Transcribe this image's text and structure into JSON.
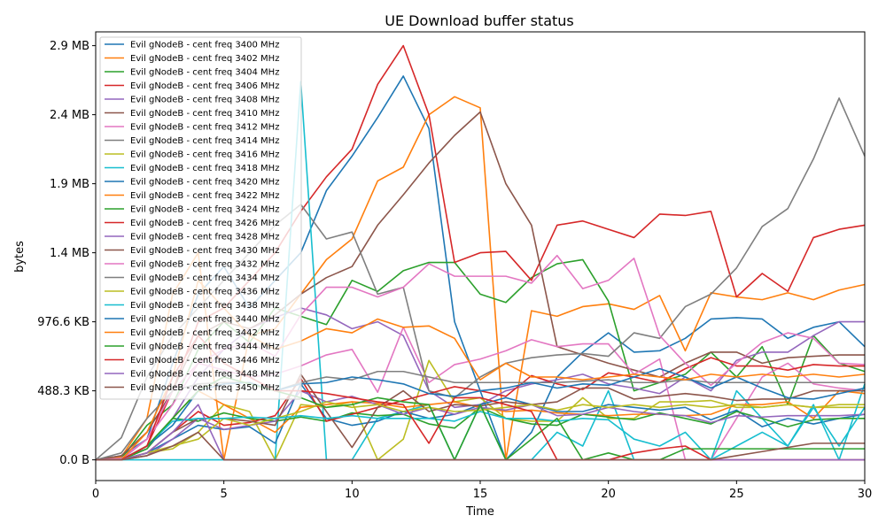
{
  "chart_data": {
    "type": "line",
    "title": "UE Download buffer status",
    "xlabel": "Time",
    "ylabel": "bytes",
    "xlim": [
      0,
      30
    ],
    "ylim": [
      -150000,
      3100000
    ],
    "x_ticks": [
      0,
      5,
      10,
      15,
      20,
      25,
      30
    ],
    "x_tick_labels": [
      "0",
      "5",
      "10",
      "15",
      "20",
      "25",
      "30"
    ],
    "y_ticks": [
      0,
      500000,
      1000000,
      1500000,
      2000000,
      2500000,
      3000000
    ],
    "y_tick_labels": [
      "0.0 B",
      "488.3 KB",
      "976.6 KB",
      "1.4 MB",
      "1.9 MB",
      "2.4 MB",
      "2.9 MB"
    ],
    "grid": false,
    "legend_position": "upper-left",
    "x": [
      0,
      1,
      2,
      3,
      4,
      5,
      6,
      7,
      8,
      9,
      10,
      11,
      12,
      13,
      14,
      15,
      16,
      17,
      18,
      19,
      20,
      21,
      22,
      23,
      24,
      25,
      26,
      27,
      28,
      29,
      30
    ],
    "series": [
      {
        "name": "Evil gNodeB - cent freq 3400 MHz",
        "color": "#1f77b4",
        "values": [
          0,
          30000,
          150000,
          700000,
          1200000,
          1400000,
          1100000,
          1300000,
          1500000,
          1950000,
          2200000,
          2480000,
          2780000,
          2400000,
          1000000,
          500000,
          0,
          200000,
          600000,
          780000,
          920000,
          780000,
          790000,
          880000,
          1020000,
          1030000,
          1020000,
          880000,
          960000,
          1000000,
          820000
        ]
      },
      {
        "name": "Evil gNodeB - cent freq 3402 MHz",
        "color": "#ff7f0e",
        "values": [
          0,
          20000,
          300000,
          1200000,
          1500000,
          0,
          900000,
          950000,
          1200000,
          1450000,
          1600000,
          2020000,
          2120000,
          2500000,
          2630000,
          2550000,
          0,
          1080000,
          1040000,
          1110000,
          1130000,
          1090000,
          1190000,
          790000,
          1210000,
          1180000,
          1160000,
          1210000,
          1160000,
          1230000,
          1270000
        ]
      },
      {
        "name": "Evil gNodeB - cent freq 3404 MHz",
        "color": "#2ca02c",
        "values": [
          0,
          10000,
          250000,
          400000,
          800000,
          1000000,
          850000,
          1100000,
          1040000,
          980000,
          1300000,
          1220000,
          1370000,
          1430000,
          1430000,
          1200000,
          1140000,
          1320000,
          1420000,
          1450000,
          1150000,
          500000,
          560000,
          620000,
          780000,
          600000,
          820000,
          400000,
          900000,
          700000,
          640000
        ]
      },
      {
        "name": "Evil gNodeB - cent freq 3406 MHz",
        "color": "#d62728",
        "values": [
          0,
          0,
          100000,
          500000,
          1000000,
          1100000,
          1300000,
          1500000,
          1800000,
          2050000,
          2250000,
          2720000,
          3000000,
          2500000,
          1430000,
          1500000,
          1510000,
          1300000,
          1700000,
          1730000,
          1670000,
          1610000,
          1780000,
          1770000,
          1800000,
          1180000,
          1350000,
          1220000,
          1610000,
          1670000,
          1700000
        ]
      },
      {
        "name": "Evil gNodeB - cent freq 3408 MHz",
        "color": "#9467bd",
        "values": [
          0,
          10000,
          80000,
          300000,
          600000,
          800000,
          950000,
          1030000,
          1100000,
          1050000,
          950000,
          1000000,
          900000,
          500000,
          380000,
          400000,
          500000,
          550000,
          580000,
          620000,
          550000,
          520000,
          480000,
          600000,
          500000,
          720000,
          780000,
          780000,
          900000,
          1000000,
          1000000
        ]
      },
      {
        "name": "Evil gNodeB - cent freq 3410 MHz",
        "color": "#8c564b",
        "values": [
          0,
          30000,
          200000,
          500000,
          900000,
          1000000,
          950000,
          1050000,
          1200000,
          1320000,
          1400000,
          1700000,
          1920000,
          2150000,
          2350000,
          2520000,
          2000000,
          1700000,
          820000,
          760000,
          700000,
          650000,
          600000,
          700000,
          780000,
          780000,
          700000,
          740000,
          750000,
          760000,
          760000
        ]
      },
      {
        "name": "Evil gNodeB - cent freq 3412 MHz",
        "color": "#e377c2",
        "values": [
          0,
          10000,
          150000,
          400000,
          700000,
          650000,
          600000,
          620000,
          680000,
          760000,
          800000,
          490000,
          960000,
          560000,
          690000,
          730000,
          790000,
          870000,
          820000,
          840000,
          840000,
          620000,
          730000,
          0,
          0,
          300000,
          600000,
          700000,
          550000,
          520000,
          500000
        ]
      },
      {
        "name": "Evil gNodeB - cent freq 3414 MHz",
        "color": "#7f7f7f",
        "values": [
          0,
          160000,
          600000,
          900000,
          1100000,
          1300000,
          1500000,
          1700000,
          1850000,
          1600000,
          1650000,
          1200000,
          1250000,
          500000,
          450000,
          600000,
          700000,
          740000,
          760000,
          770000,
          750000,
          920000,
          880000,
          1110000,
          1200000,
          1390000,
          1690000,
          1820000,
          2180000,
          2620000,
          2200000
        ]
      },
      {
        "name": "Evil gNodeB - cent freq 3416 MHz",
        "color": "#bcbd22",
        "values": [
          0,
          0,
          50000,
          80000,
          200000,
          400000,
          350000,
          0,
          400000,
          380000,
          420000,
          0,
          150000,
          720000,
          420000,
          450000,
          300000,
          280000,
          280000,
          450000,
          300000,
          300000,
          420000,
          420000,
          430000,
          380000,
          380000,
          400000,
          380000,
          380000,
          380000
        ]
      },
      {
        "name": "Evil gNodeB - cent freq 3418 MHz",
        "color": "#17becf",
        "values": [
          0,
          0,
          0,
          0,
          0,
          0,
          0,
          0,
          2740000,
          0,
          0,
          300000,
          350000,
          400000,
          0,
          400000,
          0,
          0,
          200000,
          100000,
          500000,
          0,
          0,
          0,
          0,
          500000,
          300000,
          100000,
          400000,
          0,
          550000
        ]
      },
      {
        "name": "Evil gNodeB - cent freq 3420 MHz",
        "color": "#1f77b4",
        "values": [
          0,
          0,
          50000,
          150000,
          250000,
          220000,
          240000,
          120000,
          550000,
          300000,
          250000,
          280000,
          350000,
          300000,
          330000,
          400000,
          450000,
          400000,
          350000,
          350000,
          400000,
          380000,
          360000,
          380000,
          290000,
          360000,
          240000,
          300000,
          260000,
          300000,
          330000
        ]
      },
      {
        "name": "Evil gNodeB - cent freq 3422 MHz",
        "color": "#ff7f0e",
        "values": [
          0,
          0,
          100000,
          300000,
          500000,
          400000,
          300000,
          200000,
          380000,
          400000,
          420000,
          410000,
          380000,
          400000,
          420000,
          380000,
          350000,
          360000,
          340000,
          330000,
          320000,
          330000,
          330000,
          320000,
          330000,
          400000,
          400000,
          420000,
          300000,
          500000,
          480000
        ]
      },
      {
        "name": "Evil gNodeB - cent freq 3424 MHz",
        "color": "#2ca02c",
        "values": [
          0,
          0,
          80000,
          300000,
          280000,
          340000,
          300000,
          280000,
          310000,
          280000,
          340000,
          320000,
          330000,
          260000,
          230000,
          380000,
          300000,
          260000,
          250000,
          330000,
          310000,
          290000,
          340000,
          300000,
          260000,
          350000,
          300000,
          240000,
          290000,
          300000,
          300000
        ]
      },
      {
        "name": "Evil gNodeB - cent freq 3426 MHz",
        "color": "#d62728",
        "values": [
          0,
          0,
          50000,
          200000,
          350000,
          250000,
          270000,
          320000,
          590000,
          280000,
          330000,
          380000,
          430000,
          480000,
          530000,
          500000,
          460000,
          610000,
          550000,
          510000,
          630000,
          600000,
          560000,
          660000,
          740000,
          680000,
          680000,
          650000,
          690000,
          680000,
          680000
        ]
      },
      {
        "name": "Evil gNodeB - cent freq 3428 MHz",
        "color": "#9467bd",
        "values": [
          0,
          0,
          30000,
          150000,
          300000,
          220000,
          250000,
          280000,
          500000,
          420000,
          460000,
          400000,
          330000,
          380000,
          330000,
          380000,
          360000,
          400000,
          320000,
          330000,
          380000,
          350000,
          330000,
          320000,
          270000,
          320000,
          310000,
          320000,
          320000,
          320000,
          330000
        ]
      },
      {
        "name": "Evil gNodeB - cent freq 3430 MHz",
        "color": "#8c564b",
        "values": [
          0,
          0,
          50000,
          200000,
          300000,
          300000,
          280000,
          250000,
          620000,
          350000,
          90000,
          380000,
          500000,
          350000,
          400000,
          390000,
          420000,
          400000,
          420000,
          520000,
          520000,
          440000,
          460000,
          480000,
          460000,
          430000,
          440000,
          440000,
          500000,
          500000,
          500000
        ]
      },
      {
        "name": "Evil gNodeB - cent freq 3432 MHz",
        "color": "#e377c2",
        "values": [
          0,
          0,
          150000,
          500000,
          700000,
          800000,
          850000,
          750000,
          1050000,
          1250000,
          1250000,
          1180000,
          1250000,
          1420000,
          1330000,
          1330000,
          1330000,
          1280000,
          1480000,
          1240000,
          1300000,
          1460000,
          900000,
          700000,
          540000,
          700000,
          850000,
          920000,
          880000,
          700000,
          690000
        ]
      },
      {
        "name": "Evil gNodeB - cent freq 3434 MHz",
        "color": "#7f7f7f",
        "values": [
          0,
          50000,
          300000,
          500000,
          550000,
          560000,
          560000,
          500000,
          560000,
          600000,
          580000,
          640000,
          640000,
          600000,
          560000,
          560000,
          560000,
          560000,
          560000,
          570000,
          580000,
          560000,
          560000,
          580000,
          560000,
          560000,
          560000,
          560000,
          560000,
          560000,
          560000
        ]
      },
      {
        "name": "Evil gNodeB - cent freq 3436 MHz",
        "color": "#bcbd22",
        "values": [
          0,
          0,
          50000,
          100000,
          150000,
          300000,
          250000,
          300000,
          350000,
          420000,
          380000,
          400000,
          350000,
          380000,
          350000,
          360000,
          380000,
          400000,
          360000,
          400000,
          380000,
          400000,
          380000,
          400000,
          380000,
          400000,
          380000,
          400000,
          380000,
          400000,
          400000
        ]
      },
      {
        "name": "Evil gNodeB - cent freq 3438 MHz",
        "color": "#17becf",
        "values": [
          0,
          0,
          100000,
          280000,
          300000,
          300000,
          310000,
          300000,
          320000,
          300000,
          320000,
          300000,
          300000,
          300000,
          280000,
          350000,
          300000,
          300000,
          280000,
          300000,
          290000,
          150000,
          100000,
          200000,
          0,
          100000,
          200000,
          100000,
          380000,
          100000,
          380000
        ]
      },
      {
        "name": "Evil gNodeB - cent freq 3440 MHz",
        "color": "#1f77b4",
        "values": [
          0,
          0,
          100000,
          250000,
          500000,
          550000,
          560000,
          500000,
          550000,
          560000,
          600000,
          580000,
          550000,
          480000,
          460000,
          500000,
          520000,
          560000,
          520000,
          550000,
          540000,
          600000,
          660000,
          600000,
          520000,
          600000,
          520000,
          450000,
          440000,
          480000,
          520000
        ]
      },
      {
        "name": "Evil gNodeB - cent freq 3442 MHz",
        "color": "#ff7f0e",
        "values": [
          0,
          0,
          200000,
          600000,
          1300000,
          1100000,
          900000,
          800000,
          860000,
          950000,
          920000,
          1020000,
          960000,
          970000,
          880000,
          580000,
          700000,
          600000,
          600000,
          580000,
          600000,
          620000,
          600000,
          580000,
          620000,
          600000,
          620000,
          600000,
          620000,
          600000,
          620000
        ]
      },
      {
        "name": "Evil gNodeB - cent freq 3444 MHz",
        "color": "#2ca02c",
        "values": [
          0,
          0,
          100000,
          300000,
          500000,
          600000,
          550000,
          500000,
          450000,
          380000,
          400000,
          450000,
          420000,
          400000,
          0,
          400000,
          0,
          150000,
          300000,
          0,
          50000,
          0,
          0,
          80000,
          80000,
          80000,
          80000,
          80000,
          80000,
          80000,
          80000
        ]
      },
      {
        "name": "Evil gNodeB - cent freq 3446 MHz",
        "color": "#d62728",
        "values": [
          0,
          0,
          100000,
          600000,
          900000,
          700000,
          600000,
          500000,
          500000,
          480000,
          450000,
          420000,
          400000,
          120000,
          450000,
          450000,
          400000,
          350000,
          0,
          0,
          0,
          50000,
          80000,
          100000,
          0,
          0,
          0,
          0,
          0,
          0,
          0
        ]
      },
      {
        "name": "Evil gNodeB - cent freq 3448 MHz",
        "color": "#9467bd",
        "values": [
          0,
          0,
          50000,
          200000,
          400000,
          0,
          0,
          0,
          0,
          0,
          0,
          0,
          0,
          0,
          0,
          0,
          0,
          0,
          0,
          0,
          0,
          0,
          0,
          0,
          0,
          0,
          0,
          0,
          0,
          0,
          0
        ]
      },
      {
        "name": "Evil gNodeB - cent freq 3450 MHz",
        "color": "#8c564b",
        "values": [
          0,
          0,
          30000,
          100000,
          200000,
          0,
          0,
          0,
          0,
          0,
          0,
          0,
          0,
          0,
          0,
          0,
          0,
          0,
          0,
          0,
          0,
          0,
          0,
          0,
          0,
          30000,
          60000,
          90000,
          120000,
          120000,
          120000
        ]
      }
    ]
  }
}
